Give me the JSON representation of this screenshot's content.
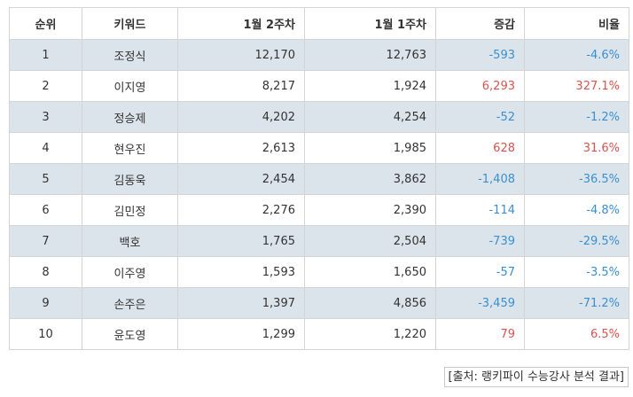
{
  "table": {
    "headers": {
      "rank": "순위",
      "keyword": "키워드",
      "week2": "1월 2주차",
      "week1": "1월 1주차",
      "change": "증감",
      "ratio": "비율"
    },
    "rows": [
      {
        "rank": "1",
        "keyword": "조정식",
        "week2": "12,170",
        "week1": "12,763",
        "change": "-593",
        "ratio": "-4.6%",
        "trend": "down"
      },
      {
        "rank": "2",
        "keyword": "이지영",
        "week2": "8,217",
        "week1": "1,924",
        "change": "6,293",
        "ratio": "327.1%",
        "trend": "up"
      },
      {
        "rank": "3",
        "keyword": "정승제",
        "week2": "4,202",
        "week1": "4,254",
        "change": "-52",
        "ratio": "-1.2%",
        "trend": "down"
      },
      {
        "rank": "4",
        "keyword": "현우진",
        "week2": "2,613",
        "week1": "1,985",
        "change": "628",
        "ratio": "31.6%",
        "trend": "up"
      },
      {
        "rank": "5",
        "keyword": "김동욱",
        "week2": "2,454",
        "week1": "3,862",
        "change": "-1,408",
        "ratio": "-36.5%",
        "trend": "down"
      },
      {
        "rank": "6",
        "keyword": "김민정",
        "week2": "2,276",
        "week1": "2,390",
        "change": "-114",
        "ratio": "-4.8%",
        "trend": "down"
      },
      {
        "rank": "7",
        "keyword": "백호",
        "week2": "1,765",
        "week1": "2,504",
        "change": "-739",
        "ratio": "-29.5%",
        "trend": "down"
      },
      {
        "rank": "8",
        "keyword": "이주영",
        "week2": "1,593",
        "week1": "1,650",
        "change": "-57",
        "ratio": "-3.5%",
        "trend": "down"
      },
      {
        "rank": "9",
        "keyword": "손주은",
        "week2": "1,397",
        "week1": "4,856",
        "change": "-3,459",
        "ratio": "-71.2%",
        "trend": "down"
      },
      {
        "rank": "10",
        "keyword": "윤도영",
        "week2": "1,299",
        "week1": "1,220",
        "change": "79",
        "ratio": "6.5%",
        "trend": "up"
      }
    ]
  },
  "source": "[출처: 랭키파이 수능강사 분석 결과]",
  "colors": {
    "shaded_row": "#dbe4ea",
    "negative": "#3a8fd1",
    "positive": "#d9534f",
    "border": "#d4d4d4"
  }
}
